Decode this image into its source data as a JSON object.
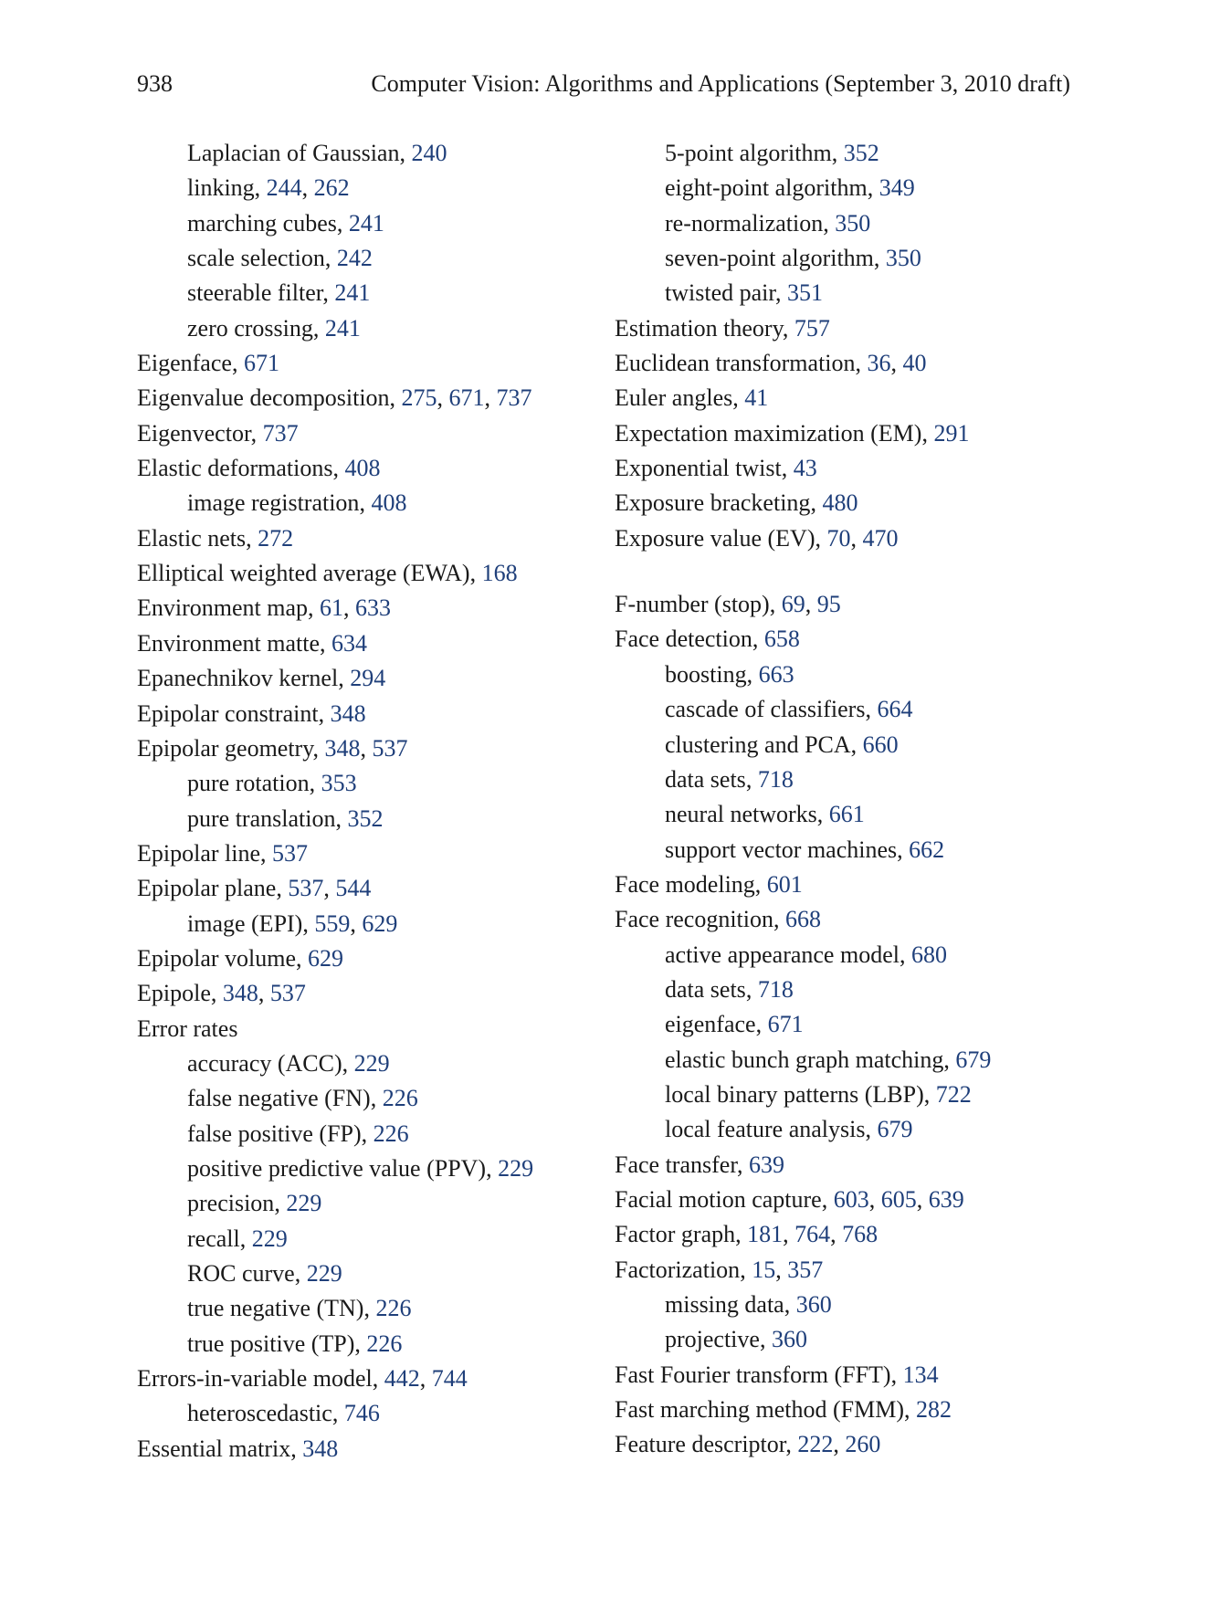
{
  "header": {
    "page_number": "938",
    "running_title": "Computer Vision: Algorithms and Applications (September 3, 2010 draft)"
  },
  "columns": [
    [
      {
        "term": "Laplacian of Gaussian",
        "pages": [
          "240"
        ],
        "level": 1
      },
      {
        "term": "linking",
        "pages": [
          "244",
          "262"
        ],
        "level": 1
      },
      {
        "term": "marching cubes",
        "pages": [
          "241"
        ],
        "level": 1
      },
      {
        "term": "scale selection",
        "pages": [
          "242"
        ],
        "level": 1
      },
      {
        "term": "steerable filter",
        "pages": [
          "241"
        ],
        "level": 1
      },
      {
        "term": "zero crossing",
        "pages": [
          "241"
        ],
        "level": 1
      },
      {
        "term": "Eigenface",
        "pages": [
          "671"
        ],
        "level": 0
      },
      {
        "term": "Eigenvalue decomposition",
        "pages": [
          "275",
          "671",
          "737"
        ],
        "level": 0
      },
      {
        "term": "Eigenvector",
        "pages": [
          "737"
        ],
        "level": 0
      },
      {
        "term": "Elastic deformations",
        "pages": [
          "408"
        ],
        "level": 0
      },
      {
        "term": "image registration",
        "pages": [
          "408"
        ],
        "level": 1
      },
      {
        "term": "Elastic nets",
        "pages": [
          "272"
        ],
        "level": 0
      },
      {
        "term": "Elliptical weighted average (EWA)",
        "pages": [
          "168"
        ],
        "level": 0
      },
      {
        "term": "Environment map",
        "pages": [
          "61",
          "633"
        ],
        "level": 0
      },
      {
        "term": "Environment matte",
        "pages": [
          "634"
        ],
        "level": 0
      },
      {
        "term": "Epanechnikov kernel",
        "pages": [
          "294"
        ],
        "level": 0
      },
      {
        "term": "Epipolar constraint",
        "pages": [
          "348"
        ],
        "level": 0
      },
      {
        "term": "Epipolar geometry",
        "pages": [
          "348",
          "537"
        ],
        "level": 0
      },
      {
        "term": "pure rotation",
        "pages": [
          "353"
        ],
        "level": 1
      },
      {
        "term": "pure translation",
        "pages": [
          "352"
        ],
        "level": 1
      },
      {
        "term": "Epipolar line",
        "pages": [
          "537"
        ],
        "level": 0
      },
      {
        "term": "Epipolar plane",
        "pages": [
          "537",
          "544"
        ],
        "level": 0
      },
      {
        "term": "image (EPI)",
        "pages": [
          "559",
          "629"
        ],
        "level": 1
      },
      {
        "term": "Epipolar volume",
        "pages": [
          "629"
        ],
        "level": 0
      },
      {
        "term": "Epipole",
        "pages": [
          "348",
          "537"
        ],
        "level": 0
      },
      {
        "term": "Error rates",
        "pages": [],
        "level": 0
      },
      {
        "term": "accuracy (ACC)",
        "pages": [
          "229"
        ],
        "level": 1
      },
      {
        "term": "false negative (FN)",
        "pages": [
          "226"
        ],
        "level": 1
      },
      {
        "term": "false positive (FP)",
        "pages": [
          "226"
        ],
        "level": 1
      },
      {
        "term": "positive predictive value (PPV)",
        "pages": [
          "229"
        ],
        "level": 1
      },
      {
        "term": "precision",
        "pages": [
          "229"
        ],
        "level": 1
      },
      {
        "term": "recall",
        "pages": [
          "229"
        ],
        "level": 1
      },
      {
        "term": "ROC curve",
        "pages": [
          "229"
        ],
        "level": 1
      },
      {
        "term": "true negative (TN)",
        "pages": [
          "226"
        ],
        "level": 1
      },
      {
        "term": "true positive (TP)",
        "pages": [
          "226"
        ],
        "level": 1
      },
      {
        "term": "Errors-in-variable model",
        "pages": [
          "442",
          "744"
        ],
        "level": 0
      },
      {
        "term": "heteroscedastic",
        "pages": [
          "746"
        ],
        "level": 1
      },
      {
        "term": "Essential matrix",
        "pages": [
          "348"
        ],
        "level": 0
      }
    ],
    [
      {
        "term": "5-point algorithm",
        "pages": [
          "352"
        ],
        "level": 1
      },
      {
        "term": "eight-point algorithm",
        "pages": [
          "349"
        ],
        "level": 1
      },
      {
        "term": "re-normalization",
        "pages": [
          "350"
        ],
        "level": 1
      },
      {
        "term": "seven-point algorithm",
        "pages": [
          "350"
        ],
        "level": 1
      },
      {
        "term": "twisted pair",
        "pages": [
          "351"
        ],
        "level": 1
      },
      {
        "term": "Estimation theory",
        "pages": [
          "757"
        ],
        "level": 0
      },
      {
        "term": "Euclidean transformation",
        "pages": [
          "36",
          "40"
        ],
        "level": 0
      },
      {
        "term": "Euler angles",
        "pages": [
          "41"
        ],
        "level": 0
      },
      {
        "term": "Expectation maximization (EM)",
        "pages": [
          "291"
        ],
        "level": 0
      },
      {
        "term": "Exponential twist",
        "pages": [
          "43"
        ],
        "level": 0
      },
      {
        "term": "Exposure bracketing",
        "pages": [
          "480"
        ],
        "level": 0
      },
      {
        "term": "Exposure value (EV)",
        "pages": [
          "70",
          "470"
        ],
        "level": 0
      },
      {
        "gap": true
      },
      {
        "term": "F-number (stop)",
        "pages": [
          "69",
          "95"
        ],
        "level": 0
      },
      {
        "term": "Face detection",
        "pages": [
          "658"
        ],
        "level": 0
      },
      {
        "term": "boosting",
        "pages": [
          "663"
        ],
        "level": 1
      },
      {
        "term": "cascade of classifiers",
        "pages": [
          "664"
        ],
        "level": 1
      },
      {
        "term": "clustering and PCA",
        "pages": [
          "660"
        ],
        "level": 1
      },
      {
        "term": "data sets",
        "pages": [
          "718"
        ],
        "level": 1
      },
      {
        "term": "neural networks",
        "pages": [
          "661"
        ],
        "level": 1
      },
      {
        "term": "support vector machines",
        "pages": [
          "662"
        ],
        "level": 1
      },
      {
        "term": "Face modeling",
        "pages": [
          "601"
        ],
        "level": 0
      },
      {
        "term": "Face recognition",
        "pages": [
          "668"
        ],
        "level": 0
      },
      {
        "term": "active appearance model",
        "pages": [
          "680"
        ],
        "level": 1
      },
      {
        "term": "data sets",
        "pages": [
          "718"
        ],
        "level": 1
      },
      {
        "term": "eigenface",
        "pages": [
          "671"
        ],
        "level": 1
      },
      {
        "term": "elastic bunch graph matching",
        "pages": [
          "679"
        ],
        "level": 1
      },
      {
        "term": "local binary patterns (LBP)",
        "pages": [
          "722"
        ],
        "level": 1
      },
      {
        "term": "local feature analysis",
        "pages": [
          "679"
        ],
        "level": 1
      },
      {
        "term": "Face transfer",
        "pages": [
          "639"
        ],
        "level": 0
      },
      {
        "term": "Facial motion capture",
        "pages": [
          "603",
          "605",
          "639"
        ],
        "level": 0
      },
      {
        "term": "Factor graph",
        "pages": [
          "181",
          "764",
          "768"
        ],
        "level": 0
      },
      {
        "term": "Factorization",
        "pages": [
          "15",
          "357"
        ],
        "level": 0
      },
      {
        "term": "missing data",
        "pages": [
          "360"
        ],
        "level": 1
      },
      {
        "term": "projective",
        "pages": [
          "360"
        ],
        "level": 1
      },
      {
        "term": "Fast Fourier transform (FFT)",
        "pages": [
          "134"
        ],
        "level": 0
      },
      {
        "term": "Fast marching method (FMM)",
        "pages": [
          "282"
        ],
        "level": 0
      },
      {
        "term": "Feature descriptor",
        "pages": [
          "222",
          "260"
        ],
        "level": 0
      }
    ]
  ]
}
